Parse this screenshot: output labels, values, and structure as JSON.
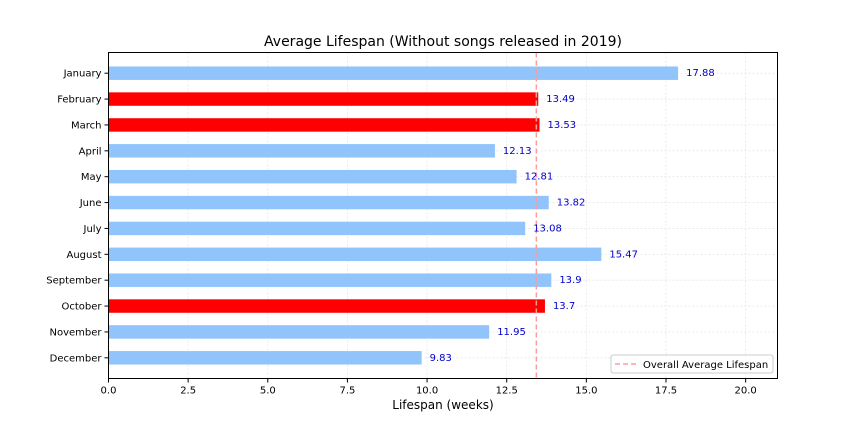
{
  "chart_data": {
    "type": "bar",
    "orientation": "horizontal",
    "title": "Average Lifespan (Without songs released in 2019)",
    "xlabel": "Lifespan (weeks)",
    "ylabel": "",
    "xlim": [
      0,
      21
    ],
    "xticks": [
      "0.0",
      "2.5",
      "5.0",
      "7.5",
      "10.0",
      "12.5",
      "15.0",
      "17.5",
      "20.0"
    ],
    "grid": true,
    "categories": [
      "January",
      "February",
      "March",
      "April",
      "May",
      "June",
      "July",
      "August",
      "September",
      "October",
      "November",
      "December"
    ],
    "values": [
      17.88,
      13.49,
      13.53,
      12.13,
      12.81,
      13.82,
      13.08,
      15.47,
      13.9,
      13.7,
      11.95,
      9.83
    ],
    "value_labels": [
      "17.88",
      "13.49",
      "13.53",
      "12.13",
      "12.81",
      "13.82",
      "13.08",
      "15.47",
      "13.9",
      "13.7",
      "11.95",
      "9.83"
    ],
    "highlighted": [
      "February",
      "March",
      "October"
    ],
    "reference_line": {
      "value": 13.43,
      "label": "Overall Average Lifespan"
    },
    "legend_position": "bottom-right",
    "colors": {
      "bar": "#90c4fb",
      "highlight": "#ff0000",
      "value_label": "#0000cc",
      "reference_line": "#ff9a9a",
      "grid": "#e6e6e6"
    }
  }
}
